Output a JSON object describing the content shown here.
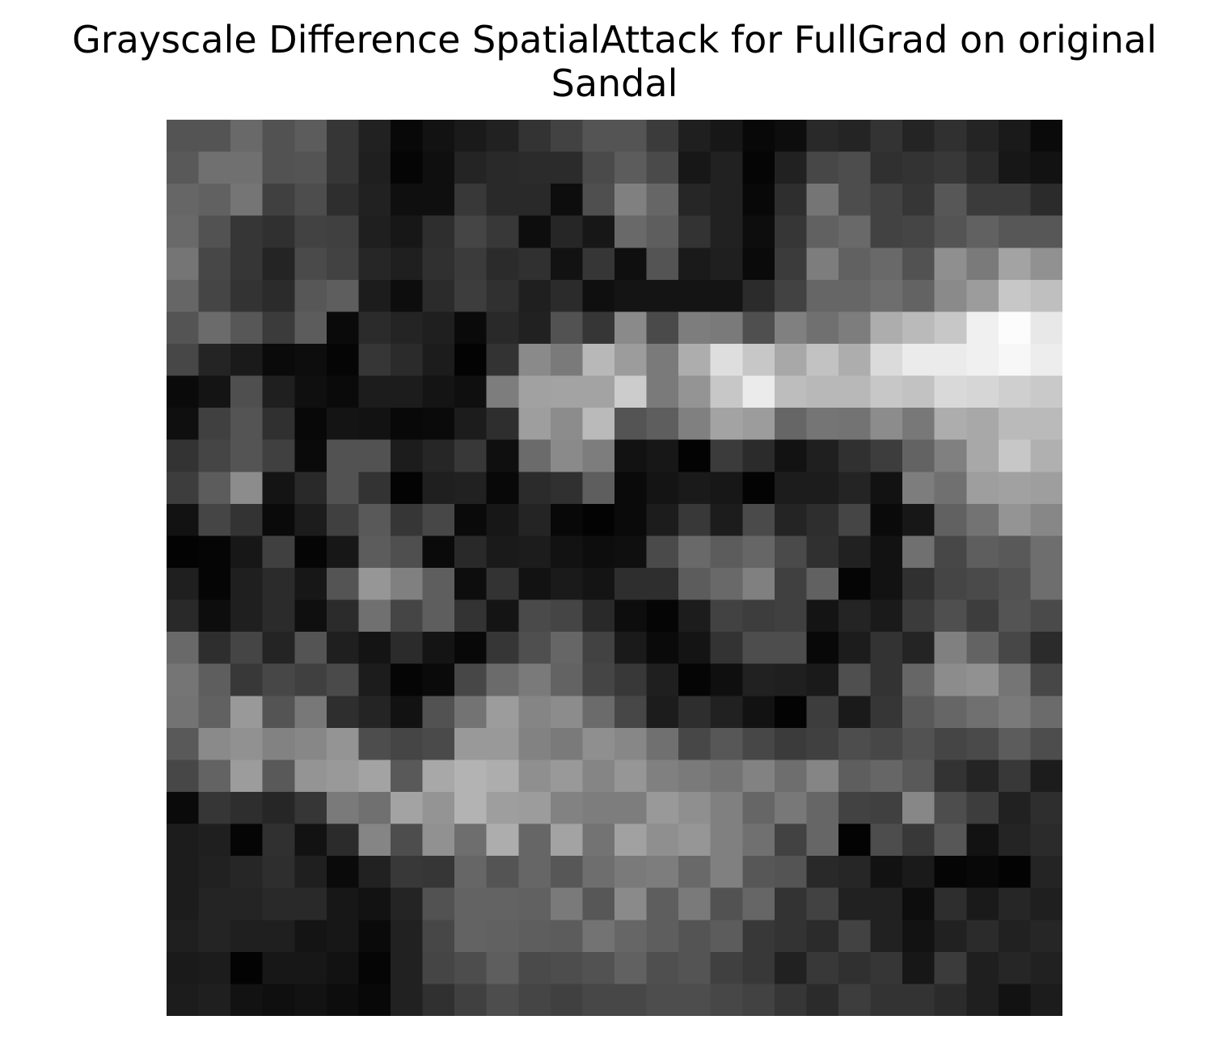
{
  "chart_data": {
    "type": "heatmap",
    "title": "Grayscale Difference SpatialAttack for FullGrad on original",
    "subtitle": "Sandal",
    "colormap": "gray",
    "axes_visible": false,
    "grid": false,
    "rows": 28,
    "cols": 28,
    "values": [
      [
        0.33,
        0.33,
        0.41,
        0.32,
        0.36,
        0.21,
        0.13,
        0.03,
        0.07,
        0.1,
        0.13,
        0.2,
        0.26,
        0.33,
        0.33,
        0.23,
        0.12,
        0.09,
        0.03,
        0.05,
        0.16,
        0.14,
        0.2,
        0.14,
        0.19,
        0.14,
        0.1,
        0.04
      ],
      [
        0.35,
        0.44,
        0.44,
        0.32,
        0.33,
        0.21,
        0.12,
        0.02,
        0.06,
        0.14,
        0.16,
        0.17,
        0.17,
        0.29,
        0.36,
        0.29,
        0.09,
        0.13,
        0.02,
        0.13,
        0.28,
        0.3,
        0.19,
        0.2,
        0.22,
        0.17,
        0.09,
        0.07
      ],
      [
        0.4,
        0.38,
        0.46,
        0.25,
        0.3,
        0.18,
        0.13,
        0.06,
        0.06,
        0.22,
        0.16,
        0.16,
        0.05,
        0.31,
        0.5,
        0.4,
        0.15,
        0.13,
        0.03,
        0.18,
        0.46,
        0.3,
        0.26,
        0.21,
        0.34,
        0.23,
        0.23,
        0.17
      ],
      [
        0.41,
        0.32,
        0.21,
        0.19,
        0.26,
        0.25,
        0.12,
        0.09,
        0.18,
        0.27,
        0.22,
        0.05,
        0.15,
        0.09,
        0.41,
        0.37,
        0.2,
        0.13,
        0.05,
        0.21,
        0.38,
        0.41,
        0.26,
        0.27,
        0.33,
        0.38,
        0.34,
        0.34
      ],
      [
        0.46,
        0.28,
        0.21,
        0.14,
        0.29,
        0.26,
        0.15,
        0.12,
        0.19,
        0.23,
        0.17,
        0.19,
        0.07,
        0.21,
        0.06,
        0.33,
        0.1,
        0.12,
        0.04,
        0.23,
        0.49,
        0.38,
        0.41,
        0.32,
        0.56,
        0.48,
        0.64,
        0.57
      ],
      [
        0.4,
        0.27,
        0.2,
        0.17,
        0.34,
        0.37,
        0.11,
        0.05,
        0.17,
        0.24,
        0.19,
        0.12,
        0.17,
        0.06,
        0.08,
        0.08,
        0.08,
        0.08,
        0.17,
        0.26,
        0.4,
        0.4,
        0.43,
        0.39,
        0.54,
        0.61,
        0.78,
        0.75
      ],
      [
        0.33,
        0.42,
        0.34,
        0.23,
        0.36,
        0.04,
        0.17,
        0.14,
        0.12,
        0.04,
        0.16,
        0.13,
        0.32,
        0.21,
        0.54,
        0.29,
        0.49,
        0.48,
        0.31,
        0.5,
        0.44,
        0.49,
        0.68,
        0.73,
        0.78,
        0.94,
        0.99,
        0.91
      ],
      [
        0.28,
        0.14,
        0.1,
        0.04,
        0.05,
        0.02,
        0.21,
        0.17,
        0.11,
        0.01,
        0.2,
        0.54,
        0.48,
        0.72,
        0.61,
        0.48,
        0.68,
        0.87,
        0.78,
        0.66,
        0.76,
        0.68,
        0.86,
        0.92,
        0.92,
        0.94,
        0.97,
        0.93
      ],
      [
        0.04,
        0.08,
        0.31,
        0.12,
        0.06,
        0.04,
        0.11,
        0.11,
        0.08,
        0.06,
        0.49,
        0.63,
        0.64,
        0.64,
        0.8,
        0.48,
        0.58,
        0.78,
        0.92,
        0.74,
        0.72,
        0.72,
        0.78,
        0.76,
        0.85,
        0.84,
        0.81,
        0.79
      ],
      [
        0.06,
        0.25,
        0.33,
        0.19,
        0.03,
        0.08,
        0.07,
        0.03,
        0.04,
        0.11,
        0.18,
        0.62,
        0.55,
        0.73,
        0.33,
        0.37,
        0.5,
        0.64,
        0.61,
        0.4,
        0.46,
        0.45,
        0.55,
        0.47,
        0.68,
        0.66,
        0.73,
        0.73
      ],
      [
        0.2,
        0.27,
        0.33,
        0.25,
        0.04,
        0.32,
        0.32,
        0.11,
        0.15,
        0.22,
        0.06,
        0.42,
        0.54,
        0.49,
        0.07,
        0.09,
        0.01,
        0.23,
        0.17,
        0.07,
        0.12,
        0.19,
        0.24,
        0.39,
        0.5,
        0.66,
        0.78,
        0.69
      ],
      [
        0.24,
        0.36,
        0.55,
        0.08,
        0.16,
        0.32,
        0.2,
        0.01,
        0.12,
        0.13,
        0.03,
        0.17,
        0.19,
        0.37,
        0.04,
        0.08,
        0.1,
        0.09,
        0.01,
        0.11,
        0.11,
        0.14,
        0.07,
        0.49,
        0.44,
        0.62,
        0.63,
        0.62
      ],
      [
        0.07,
        0.27,
        0.2,
        0.04,
        0.11,
        0.25,
        0.35,
        0.21,
        0.28,
        0.04,
        0.09,
        0.14,
        0.03,
        0.01,
        0.04,
        0.11,
        0.22,
        0.11,
        0.29,
        0.14,
        0.18,
        0.27,
        0.04,
        0.09,
        0.38,
        0.45,
        0.58,
        0.53
      ],
      [
        0.01,
        0.02,
        0.09,
        0.25,
        0.02,
        0.09,
        0.36,
        0.31,
        0.04,
        0.16,
        0.1,
        0.11,
        0.07,
        0.05,
        0.06,
        0.29,
        0.41,
        0.36,
        0.4,
        0.29,
        0.19,
        0.13,
        0.07,
        0.44,
        0.28,
        0.37,
        0.35,
        0.43
      ],
      [
        0.12,
        0.02,
        0.12,
        0.17,
        0.09,
        0.33,
        0.59,
        0.5,
        0.37,
        0.05,
        0.2,
        0.07,
        0.1,
        0.08,
        0.18,
        0.18,
        0.36,
        0.41,
        0.5,
        0.25,
        0.38,
        0.02,
        0.07,
        0.19,
        0.27,
        0.29,
        0.32,
        0.43
      ],
      [
        0.16,
        0.05,
        0.12,
        0.17,
        0.06,
        0.17,
        0.44,
        0.27,
        0.37,
        0.2,
        0.08,
        0.29,
        0.27,
        0.16,
        0.05,
        0.02,
        0.11,
        0.26,
        0.24,
        0.25,
        0.08,
        0.14,
        0.1,
        0.23,
        0.31,
        0.24,
        0.33,
        0.29
      ],
      [
        0.41,
        0.18,
        0.27,
        0.14,
        0.33,
        0.12,
        0.08,
        0.17,
        0.08,
        0.03,
        0.21,
        0.31,
        0.4,
        0.26,
        0.1,
        0.04,
        0.08,
        0.2,
        0.3,
        0.3,
        0.03,
        0.11,
        0.2,
        0.14,
        0.5,
        0.39,
        0.28,
        0.17
      ],
      [
        0.46,
        0.37,
        0.22,
        0.28,
        0.25,
        0.29,
        0.11,
        0.02,
        0.04,
        0.28,
        0.42,
        0.48,
        0.39,
        0.27,
        0.22,
        0.12,
        0.02,
        0.06,
        0.13,
        0.12,
        0.1,
        0.31,
        0.2,
        0.4,
        0.55,
        0.57,
        0.46,
        0.28
      ],
      [
        0.45,
        0.38,
        0.6,
        0.33,
        0.47,
        0.18,
        0.14,
        0.07,
        0.32,
        0.45,
        0.61,
        0.52,
        0.55,
        0.42,
        0.28,
        0.11,
        0.18,
        0.13,
        0.07,
        0.01,
        0.24,
        0.1,
        0.21,
        0.35,
        0.4,
        0.44,
        0.48,
        0.42
      ],
      [
        0.35,
        0.54,
        0.57,
        0.51,
        0.53,
        0.58,
        0.3,
        0.27,
        0.29,
        0.6,
        0.6,
        0.51,
        0.48,
        0.56,
        0.53,
        0.44,
        0.28,
        0.34,
        0.28,
        0.23,
        0.25,
        0.3,
        0.28,
        0.32,
        0.27,
        0.29,
        0.36,
        0.3
      ],
      [
        0.28,
        0.39,
        0.61,
        0.35,
        0.58,
        0.6,
        0.64,
        0.35,
        0.66,
        0.7,
        0.68,
        0.56,
        0.6,
        0.52,
        0.59,
        0.5,
        0.48,
        0.45,
        0.51,
        0.43,
        0.52,
        0.37,
        0.4,
        0.35,
        0.2,
        0.14,
        0.22,
        0.11
      ],
      [
        0.04,
        0.21,
        0.18,
        0.15,
        0.21,
        0.48,
        0.44,
        0.64,
        0.58,
        0.7,
        0.62,
        0.61,
        0.51,
        0.49,
        0.49,
        0.6,
        0.56,
        0.5,
        0.4,
        0.47,
        0.4,
        0.26,
        0.25,
        0.53,
        0.3,
        0.24,
        0.13,
        0.18
      ],
      [
        0.11,
        0.12,
        0.02,
        0.19,
        0.07,
        0.17,
        0.52,
        0.3,
        0.57,
        0.43,
        0.68,
        0.4,
        0.64,
        0.45,
        0.63,
        0.56,
        0.59,
        0.5,
        0.44,
        0.26,
        0.4,
        0.01,
        0.3,
        0.22,
        0.34,
        0.07,
        0.14,
        0.17
      ],
      [
        0.11,
        0.13,
        0.15,
        0.18,
        0.12,
        0.04,
        0.13,
        0.22,
        0.21,
        0.4,
        0.33,
        0.4,
        0.34,
        0.43,
        0.48,
        0.49,
        0.41,
        0.5,
        0.34,
        0.33,
        0.16,
        0.15,
        0.07,
        0.1,
        0.02,
        0.03,
        0.01,
        0.14
      ],
      [
        0.11,
        0.14,
        0.14,
        0.16,
        0.16,
        0.09,
        0.07,
        0.14,
        0.32,
        0.39,
        0.39,
        0.38,
        0.48,
        0.34,
        0.54,
        0.37,
        0.48,
        0.32,
        0.4,
        0.2,
        0.26,
        0.13,
        0.13,
        0.05,
        0.18,
        0.1,
        0.15,
        0.12
      ],
      [
        0.12,
        0.14,
        0.12,
        0.12,
        0.08,
        0.09,
        0.04,
        0.13,
        0.28,
        0.39,
        0.38,
        0.37,
        0.36,
        0.45,
        0.4,
        0.37,
        0.33,
        0.36,
        0.22,
        0.2,
        0.17,
        0.26,
        0.13,
        0.07,
        0.13,
        0.17,
        0.13,
        0.15
      ],
      [
        0.1,
        0.11,
        0.01,
        0.09,
        0.09,
        0.07,
        0.02,
        0.13,
        0.27,
        0.3,
        0.37,
        0.29,
        0.3,
        0.32,
        0.38,
        0.31,
        0.33,
        0.25,
        0.22,
        0.13,
        0.22,
        0.19,
        0.21,
        0.09,
        0.23,
        0.12,
        0.15,
        0.13
      ],
      [
        0.11,
        0.12,
        0.07,
        0.06,
        0.07,
        0.05,
        0.03,
        0.13,
        0.19,
        0.25,
        0.3,
        0.27,
        0.25,
        0.28,
        0.28,
        0.3,
        0.3,
        0.28,
        0.26,
        0.21,
        0.17,
        0.24,
        0.2,
        0.2,
        0.17,
        0.12,
        0.07,
        0.11
      ]
    ]
  }
}
